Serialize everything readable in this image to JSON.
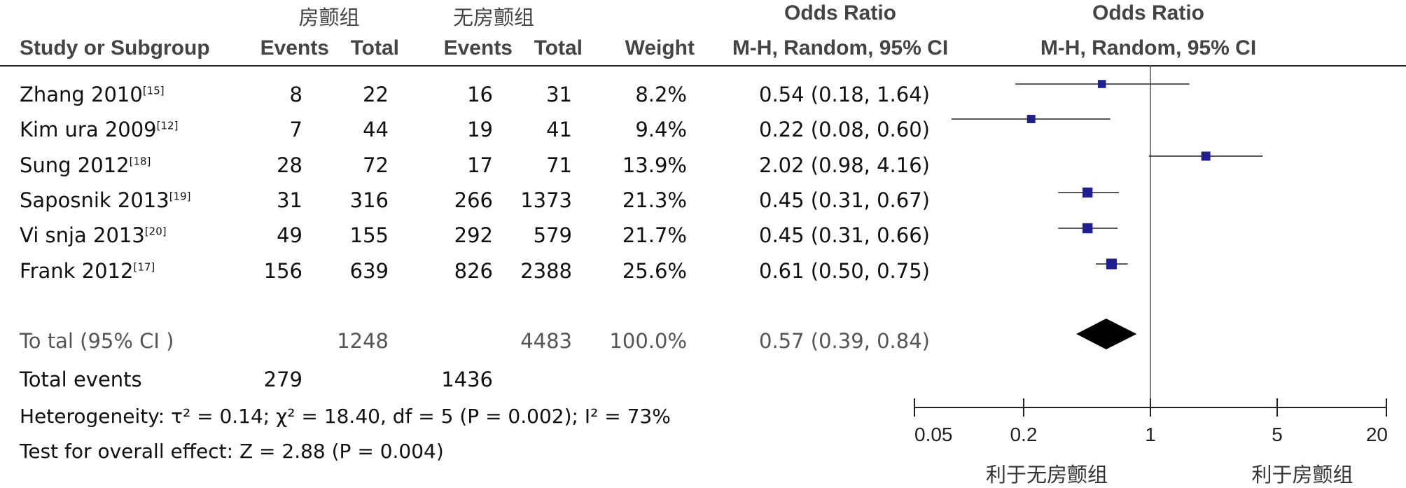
{
  "headers": {
    "group1": "房颤组",
    "group2": "无房颤组",
    "or_top_left": "Odds Ratio",
    "or_top_right": "Odds Ratio",
    "study": "Study or Subgroup",
    "events1": "Events",
    "total1": "Total",
    "events2": "Events",
    "total2": "Total",
    "weight": "Weight",
    "or_sub_left": "M-H, Random, 95% CI",
    "or_sub_right": "M-H, Random, 95% CI"
  },
  "studies": [
    {
      "name": "Zhang 2010",
      "ref": "[15]",
      "e1": "8",
      "t1": "22",
      "e2": "16",
      "t2": "31",
      "weight": "8.2%",
      "ci": "0.54 (0.18, 1.64)"
    },
    {
      "name": "Kim ura 2009",
      "ref": "[12]",
      "e1": "7",
      "t1": "44",
      "e2": "19",
      "t2": "41",
      "weight": "9.4%",
      "ci": "0.22 (0.08, 0.60)"
    },
    {
      "name": "Sung 2012",
      "ref": "[18]",
      "e1": "28",
      "t1": "72",
      "e2": "17",
      "t2": "71",
      "weight": "13.9%",
      "ci": "2.02 (0.98, 4.16)"
    },
    {
      "name": "Saposnik 2013",
      "ref": "[19]",
      "e1": "31",
      "t1": "316",
      "e2": "266",
      "t2": "1373",
      "weight": "21.3%",
      "ci": "0.45 (0.31, 0.67)"
    },
    {
      "name": "Vi snja 2013",
      "ref": "[20]",
      "e1": "49",
      "t1": "155",
      "e2": "292",
      "t2": "579",
      "weight": "21.7%",
      "ci": "0.45 (0.31, 0.66)"
    },
    {
      "name": "Frank 2012",
      "ref": "[17]",
      "e1": "156",
      "t1": "639",
      "e2": "826",
      "t2": "2388",
      "weight": "25.6%",
      "ci": "0.61 (0.50, 0.75)"
    }
  ],
  "total": {
    "label": "To tal (95% CI )",
    "t1": "1248",
    "t2": "4483",
    "weight": "100.0%",
    "ci": "0.57 (0.39, 0.84)"
  },
  "total_events": {
    "label": "Total events",
    "e1": "279",
    "e2": "1436"
  },
  "heterogeneity": "Heterogeneity: τ² = 0.14; χ² = 18.40, df = 5 (P = 0.002); I² = 73%",
  "overall_effect": "Test for overall effect: Z = 2.88 (P = 0.004)",
  "axis": {
    "ticks": [
      "0.05",
      "0.2",
      "1",
      "5",
      "20"
    ],
    "favours_left": "利于无房颤组",
    "favours_right": "利于房颤组"
  },
  "chart_data": {
    "type": "forest",
    "x_scale": "log",
    "xlim": [
      0.05,
      20
    ],
    "tick_values": [
      0.05,
      0.2,
      1,
      5,
      20
    ],
    "null_line": 1,
    "marker_color": "#1f1f8f",
    "diamond_color": "#000000",
    "points": [
      {
        "or": 0.54,
        "lo": 0.18,
        "hi": 1.64,
        "weight": 8.2
      },
      {
        "or": 0.22,
        "lo": 0.08,
        "hi": 0.6,
        "weight": 9.4
      },
      {
        "or": 2.02,
        "lo": 0.98,
        "hi": 4.16,
        "weight": 13.9
      },
      {
        "or": 0.45,
        "lo": 0.31,
        "hi": 0.67,
        "weight": 21.3
      },
      {
        "or": 0.45,
        "lo": 0.31,
        "hi": 0.66,
        "weight": 21.7
      },
      {
        "or": 0.61,
        "lo": 0.5,
        "hi": 0.75,
        "weight": 25.6
      }
    ],
    "pooled": {
      "or": 0.57,
      "lo": 0.39,
      "hi": 0.84
    }
  }
}
